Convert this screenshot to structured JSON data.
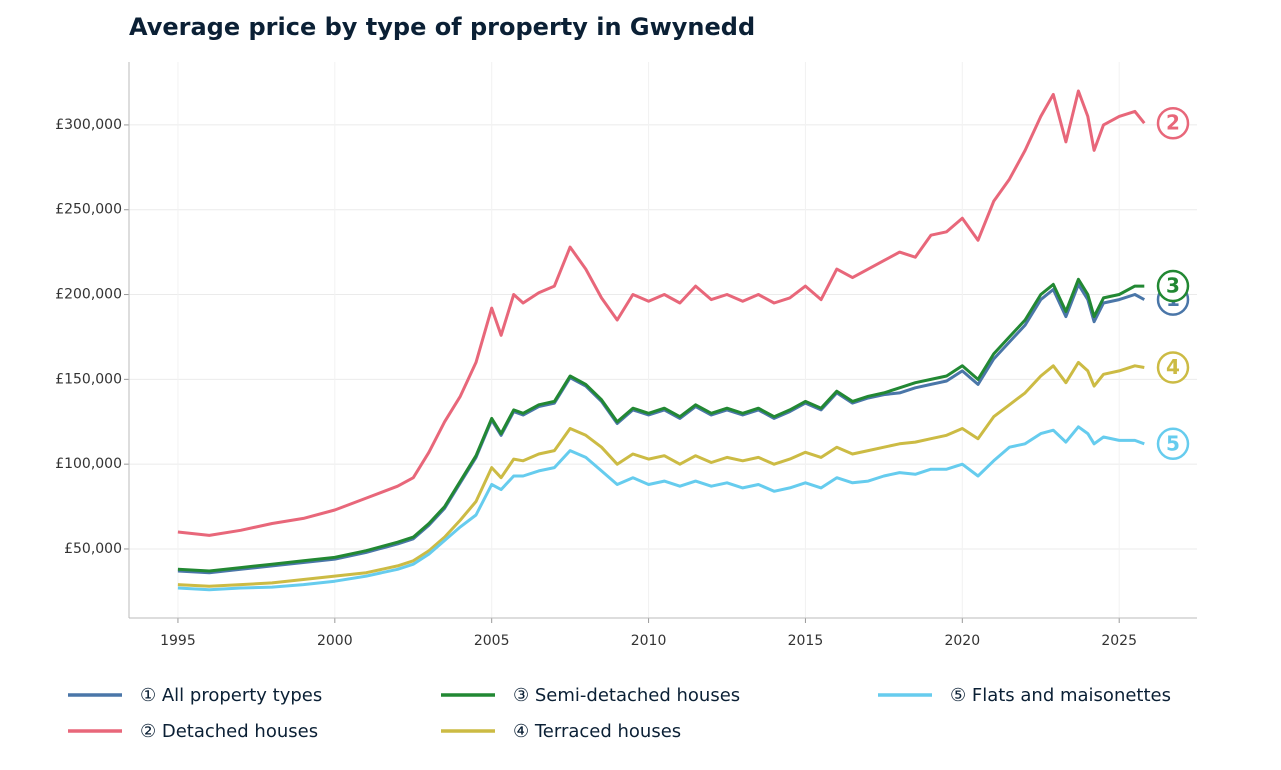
{
  "chart_data": {
    "type": "line",
    "title": "Average price by type of property in Gwynedd",
    "x": [
      1995,
      1996,
      1997,
      1998,
      1999,
      2000,
      2001,
      2002,
      2002.5,
      2003,
      2003.5,
      2004,
      2004.5,
      2005,
      2005.3,
      2005.7,
      2006,
      2006.5,
      2007,
      2007.5,
      2008,
      2008.5,
      2009,
      2009.5,
      2010,
      2010.5,
      2011,
      2011.5,
      2012,
      2012.5,
      2013,
      2013.5,
      2014,
      2014.5,
      2015,
      2015.5,
      2016,
      2016.5,
      2017,
      2017.5,
      2018,
      2018.5,
      2019,
      2019.5,
      2020,
      2020.5,
      2021,
      2021.5,
      2022,
      2022.5,
      2022.9,
      2023.3,
      2023.7,
      2024,
      2024.2,
      2024.5,
      2025,
      2025.5,
      2025.8
    ],
    "series": [
      {
        "name": "① All property types",
        "end_label": "1",
        "color": "#4a76a8",
        "values": [
          37000,
          36000,
          38000,
          40000,
          42000,
          44000,
          48000,
          53000,
          56000,
          64000,
          74000,
          89000,
          104000,
          126000,
          117000,
          131000,
          129000,
          134000,
          136000,
          151000,
          146000,
          137000,
          124000,
          132000,
          129000,
          132000,
          127000,
          134000,
          129000,
          132000,
          129000,
          132000,
          127000,
          131000,
          136000,
          132000,
          142000,
          136000,
          139000,
          141000,
          142000,
          145000,
          147000,
          149000,
          155000,
          147000,
          162000,
          172000,
          182000,
          197000,
          203000,
          187000,
          206000,
          197000,
          184000,
          195000,
          197000,
          200000,
          197000
        ]
      },
      {
        "name": "② Detached houses",
        "end_label": "2",
        "color": "#e8677a",
        "values": [
          60000,
          58000,
          61000,
          65000,
          68000,
          73000,
          80000,
          87000,
          92000,
          107000,
          125000,
          140000,
          160000,
          192000,
          176000,
          200000,
          195000,
          201000,
          205000,
          228000,
          215000,
          198000,
          185000,
          200000,
          196000,
          200000,
          195000,
          205000,
          197000,
          200000,
          196000,
          200000,
          195000,
          198000,
          205000,
          197000,
          215000,
          210000,
          215000,
          220000,
          225000,
          222000,
          235000,
          237000,
          245000,
          232000,
          255000,
          268000,
          285000,
          305000,
          318000,
          290000,
          320000,
          305000,
          285000,
          300000,
          305000,
          308000,
          301000
        ]
      },
      {
        "name": "③ Semi-detached houses",
        "end_label": "3",
        "color": "#228833",
        "values": [
          38000,
          37000,
          39000,
          41000,
          43000,
          45000,
          49000,
          54000,
          57000,
          65000,
          75000,
          90000,
          105000,
          127000,
          118000,
          132000,
          130000,
          135000,
          137000,
          152000,
          147000,
          138000,
          125000,
          133000,
          130000,
          133000,
          128000,
          135000,
          130000,
          133000,
          130000,
          133000,
          128000,
          132000,
          137000,
          133000,
          143000,
          137000,
          140000,
          142000,
          145000,
          148000,
          150000,
          152000,
          158000,
          150000,
          165000,
          175000,
          185000,
          200000,
          206000,
          190000,
          209000,
          200000,
          187000,
          198000,
          200000,
          205000,
          205000
        ]
      },
      {
        "name": "④ Terraced houses",
        "end_label": "4",
        "color": "#ccbb44",
        "values": [
          29000,
          28000,
          29000,
          30000,
          32000,
          34000,
          36000,
          40000,
          43000,
          49000,
          57000,
          67000,
          78000,
          98000,
          92000,
          103000,
          102000,
          106000,
          108000,
          121000,
          117000,
          110000,
          100000,
          106000,
          103000,
          105000,
          100000,
          105000,
          101000,
          104000,
          102000,
          104000,
          100000,
          103000,
          107000,
          104000,
          110000,
          106000,
          108000,
          110000,
          112000,
          113000,
          115000,
          117000,
          121000,
          115000,
          128000,
          135000,
          142000,
          152000,
          158000,
          148000,
          160000,
          155000,
          146000,
          153000,
          155000,
          158000,
          157000
        ]
      },
      {
        "name": "⑤ Flats and maisonettes",
        "end_label": "5",
        "color": "#66ccee",
        "values": [
          27000,
          26000,
          27000,
          27500,
          29000,
          31000,
          34000,
          38000,
          41000,
          47000,
          55000,
          63000,
          70000,
          88000,
          85000,
          93000,
          93000,
          96000,
          98000,
          108000,
          104000,
          96000,
          88000,
          92000,
          88000,
          90000,
          87000,
          90000,
          87000,
          89000,
          86000,
          88000,
          84000,
          86000,
          89000,
          86000,
          92000,
          89000,
          90000,
          93000,
          95000,
          94000,
          97000,
          97000,
          100000,
          93000,
          102000,
          110000,
          112000,
          118000,
          120000,
          113000,
          122000,
          118000,
          112000,
          116000,
          114000,
          114000,
          112000
        ]
      }
    ],
    "xlim": [
      1993.44,
      2027.48
    ],
    "xticks": [
      1995,
      2000,
      2005,
      2010,
      2015,
      2020,
      2025
    ],
    "ylim": [
      9300,
      337100
    ],
    "yticks": [
      {
        "value": 50000,
        "label": "£50,000"
      },
      {
        "value": 100000,
        "label": "£100,000"
      },
      {
        "value": 150000,
        "label": "£150,000"
      },
      {
        "value": 200000,
        "label": "£200,000"
      },
      {
        "value": 250000,
        "label": "£250,000"
      },
      {
        "value": 300000,
        "label": "£300,000"
      }
    ],
    "grid": true,
    "legend": "bottom"
  }
}
